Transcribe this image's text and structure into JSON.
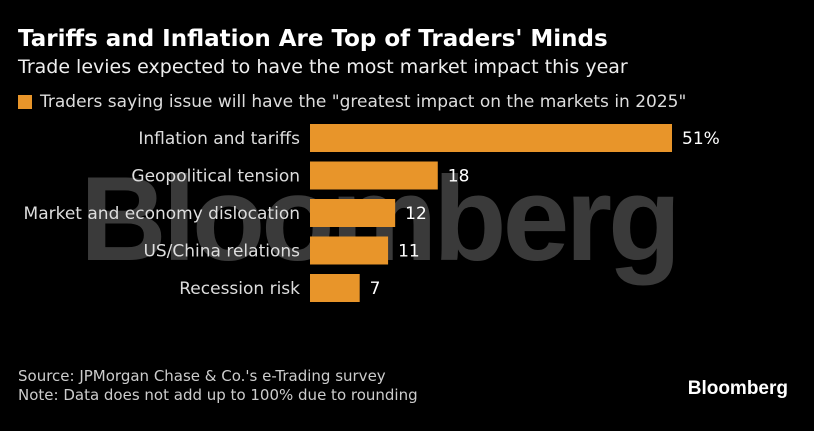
{
  "title": "Tariffs and Inflation Are Top of Traders' Minds",
  "subtitle": "Trade levies expected to have the most market impact this year",
  "source": "Source: JPMorgan Chase & Co.'s e-Trading survey",
  "note": "Note: Data does not add up to 100% due to rounding",
  "logo": "Bloomberg",
  "watermark": "Bloomberg",
  "chart_data": {
    "type": "bar",
    "orientation": "horizontal",
    "categories": [
      "Inflation and tariffs",
      "Geopolitical tension",
      "Market and economy dislocation",
      "US/China relations",
      "Recession risk"
    ],
    "series": [
      {
        "name": "Traders saying issue will have the \"greatest impact on the markets in 2025\"",
        "values": [
          51,
          18,
          12,
          11,
          7
        ],
        "color": "#e8952a"
      }
    ],
    "data_labels": [
      "51%",
      "18",
      "12",
      "11",
      "7"
    ],
    "legend": "top-left",
    "grid": false
  }
}
